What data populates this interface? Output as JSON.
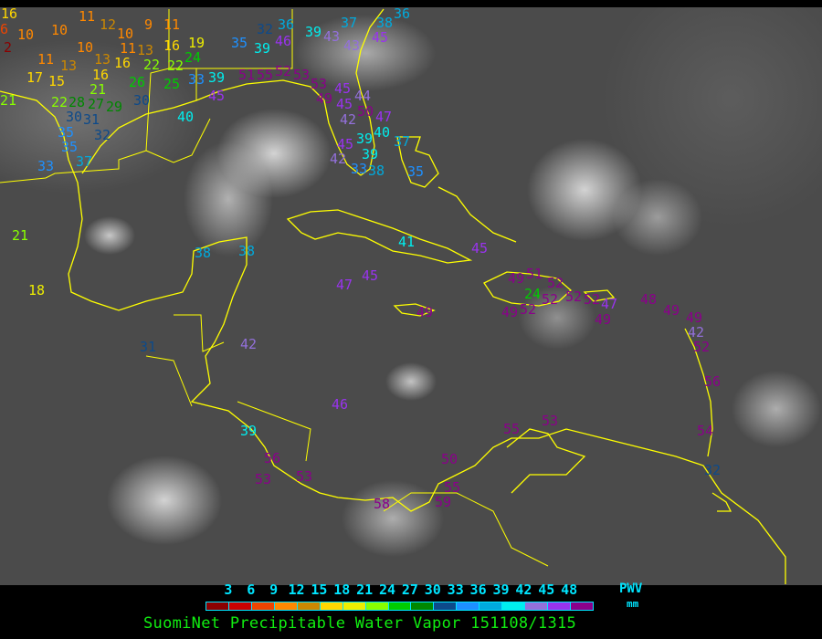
{
  "title": "SuomiNet Precipitable Water Vapor 151108/1315",
  "legend": {
    "label": "PWV",
    "unit": "mm",
    "ticks": [
      "3",
      "6",
      "9",
      "12",
      "15",
      "18",
      "21",
      "24",
      "27",
      "30",
      "33",
      "36",
      "39",
      "42",
      "45",
      "48"
    ],
    "colors": [
      "#8b0000",
      "#cc0000",
      "#ee4400",
      "#ff8800",
      "#cc8800",
      "#ffd700",
      "#eeee00",
      "#88ff00",
      "#00cc00",
      "#008800",
      "#0d4a8a",
      "#1e90ff",
      "#00aadd",
      "#00eeee",
      "#9370db",
      "#9933ee",
      "#8b008b"
    ],
    "bin_edges": [
      3,
      6,
      9,
      12,
      15,
      18,
      21,
      24,
      27,
      30,
      33,
      36,
      39,
      42,
      45,
      48
    ]
  },
  "coastline_color": "#ffff00",
  "stations": [
    "16",
    "6",
    "10",
    "2",
    "10",
    "11",
    "12",
    "10",
    "11",
    "9",
    "11",
    "10",
    "13",
    "16",
    "19",
    "11",
    "13",
    "13",
    "16",
    "22",
    "22",
    "24",
    "17",
    "15",
    "16",
    "21",
    "26",
    "25",
    "33",
    "39",
    "51",
    "55",
    "22",
    "28",
    "27",
    "29",
    "30",
    "21",
    "30",
    "31",
    "32",
    "40",
    "35",
    "35",
    "37",
    "33",
    "45",
    "32",
    "36",
    "35",
    "39",
    "46",
    "39",
    "43",
    "37",
    "36",
    "38",
    "45",
    "43",
    "52",
    "53",
    "53",
    "49",
    "45",
    "45",
    "44",
    "50",
    "42",
    "47",
    "40",
    "39",
    "37",
    "39",
    "45",
    "42",
    "33",
    "38",
    "35",
    "38",
    "38",
    "41",
    "45",
    "47",
    "45",
    "49",
    "51",
    "49",
    "52",
    "24",
    "52",
    "49",
    "52",
    "52",
    "52",
    "47",
    "49",
    "48",
    "49",
    "49",
    "42",
    "52",
    "56",
    "54",
    "32",
    "46",
    "42",
    "31",
    "39",
    "56",
    "53",
    "53",
    "58",
    "59",
    "55",
    "50",
    "55",
    "53",
    "18",
    "21"
  ]
}
